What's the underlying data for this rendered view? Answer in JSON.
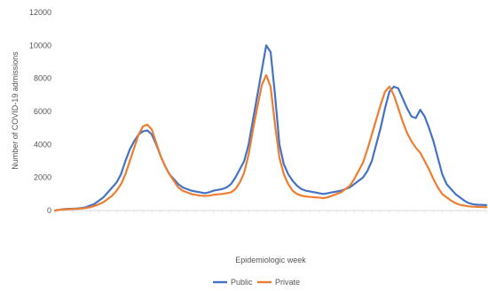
{
  "chart_data": {
    "type": "line",
    "title": "",
    "xlabel": "Epidemiologic week",
    "ylabel": "Number of COVID-19 admissions",
    "ylim": [
      0,
      12000
    ],
    "y_ticks": [
      0,
      2000,
      4000,
      6000,
      8000,
      10000,
      12000
    ],
    "grid": false,
    "legend_position": "bottom",
    "x_tick_labels_note": "",
    "series": [
      {
        "name": "Public",
        "color": "#4472C4",
        "values": [
          0,
          50,
          80,
          100,
          110,
          120,
          150,
          200,
          300,
          400,
          600,
          800,
          1100,
          1400,
          1700,
          2200,
          3000,
          3700,
          4200,
          4600,
          4800,
          4850,
          4600,
          4000,
          3300,
          2700,
          2200,
          1900,
          1600,
          1400,
          1300,
          1200,
          1150,
          1100,
          1050,
          1100,
          1200,
          1250,
          1300,
          1400,
          1600,
          2000,
          2500,
          3000,
          4000,
          5500,
          7000,
          8500,
          10000,
          9600,
          7000,
          4000,
          2800,
          2200,
          1800,
          1500,
          1300,
          1200,
          1150,
          1100,
          1050,
          1000,
          1050,
          1100,
          1150,
          1200,
          1300,
          1400,
          1600,
          1800,
          2000,
          2400,
          3000,
          4000,
          5000,
          6200,
          7200,
          7500,
          7400,
          6800,
          6200,
          5700,
          5600,
          6100,
          5700,
          5000,
          4200,
          3200,
          2200,
          1600,
          1300,
          1000,
          800,
          600,
          450,
          380,
          350,
          340,
          330
        ]
      },
      {
        "name": "Private",
        "color": "#ED7D31",
        "values": [
          0,
          40,
          60,
          80,
          90,
          100,
          120,
          150,
          200,
          280,
          380,
          500,
          700,
          900,
          1200,
          1600,
          2200,
          3000,
          3800,
          4600,
          5100,
          5200,
          4900,
          4100,
          3300,
          2700,
          2200,
          1800,
          1400,
          1200,
          1100,
          1000,
          950,
          900,
          880,
          900,
          950,
          980,
          1000,
          1050,
          1100,
          1300,
          1700,
          2300,
          3400,
          4900,
          6300,
          7600,
          8200,
          7500,
          5200,
          3200,
          2200,
          1600,
          1200,
          1000,
          900,
          850,
          820,
          800,
          780,
          750,
          800,
          900,
          1000,
          1100,
          1300,
          1500,
          1900,
          2400,
          2900,
          3700,
          4600,
          5500,
          6400,
          7200,
          7500,
          7000,
          6200,
          5400,
          4700,
          4200,
          3800,
          3500,
          3000,
          2500,
          1900,
          1400,
          1000,
          800,
          600,
          450,
          350,
          300,
          250,
          230,
          220,
          210,
          200
        ]
      }
    ]
  }
}
